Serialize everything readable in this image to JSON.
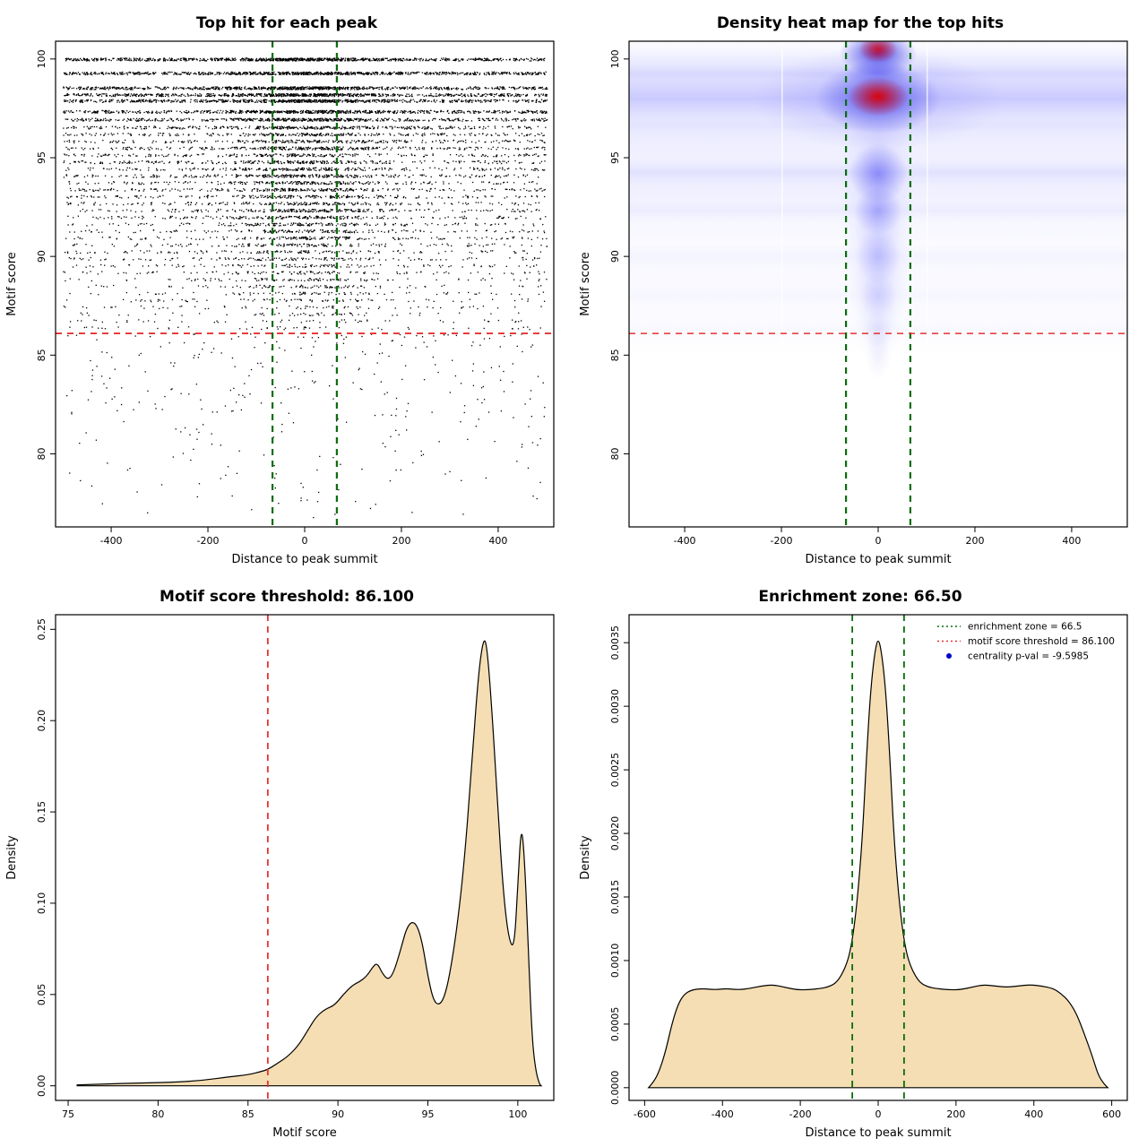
{
  "page": {
    "background": "#ffffff"
  },
  "colors": {
    "zone_green": "#0b6d0b",
    "threshold_red": "#e83030",
    "density_fill": "#f5deb3",
    "point_black": "#000000",
    "heat_blue": "#4040f0",
    "heat_red": "#e00000"
  },
  "chart_data": [
    {
      "id": "top-hits-scatter",
      "type": "scatter",
      "title": "Top hit for each peak",
      "xlabel": "Distance to peak summit",
      "ylabel": "Motif score",
      "xlim": [
        -515,
        515
      ],
      "ylim": [
        76.3,
        100.9
      ],
      "xticks": [
        {
          "v": -400,
          "l": "-400"
        },
        {
          "v": -200,
          "l": "-200"
        },
        {
          "v": 0,
          "l": "0"
        },
        {
          "v": 200,
          "l": "200"
        },
        {
          "v": 400,
          "l": "400"
        }
      ],
      "yticks": [
        {
          "v": 80,
          "l": "80"
        },
        {
          "v": 85,
          "l": "85"
        },
        {
          "v": 90,
          "l": "90"
        },
        {
          "v": 95,
          "l": "95"
        },
        {
          "v": 100,
          "l": "100"
        }
      ],
      "point_color": "#000000",
      "seed": 42,
      "bands": [
        [
          100.0,
          950,
          0.25
        ],
        [
          99.3,
          900,
          0.25
        ],
        [
          98.55,
          850,
          0.3
        ],
        [
          98.2,
          820,
          0.3
        ],
        [
          97.9,
          800,
          0.3
        ],
        [
          97.35,
          750,
          0.3
        ],
        [
          96.95,
          600,
          0.3
        ],
        [
          96.55,
          420,
          0.3
        ],
        [
          96.2,
          300,
          0.35
        ],
        [
          95.85,
          280,
          0.35
        ],
        [
          95.5,
          340,
          0.35
        ],
        [
          95.15,
          260,
          0.35
        ],
        [
          94.8,
          300,
          0.35
        ],
        [
          94.45,
          280,
          0.4
        ],
        [
          94.1,
          320,
          0.4
        ],
        [
          93.75,
          260,
          0.4
        ],
        [
          93.4,
          300,
          0.4
        ],
        [
          93.05,
          240,
          0.4
        ],
        [
          92.7,
          220,
          0.4
        ],
        [
          92.35,
          260,
          0.45
        ],
        [
          92.0,
          230,
          0.45
        ],
        [
          91.65,
          200,
          0.4
        ],
        [
          91.3,
          180,
          0.45
        ],
        [
          90.95,
          190,
          0.45
        ],
        [
          90.6,
          160,
          0.45
        ],
        [
          90.25,
          150,
          0.45
        ],
        [
          89.9,
          150,
          0.45
        ],
        [
          89.55,
          130,
          0.45
        ],
        [
          89.2,
          120,
          0.45
        ],
        [
          88.85,
          110,
          0.45
        ],
        [
          88.5,
          100,
          0.45
        ],
        [
          88.15,
          90,
          0.45
        ],
        [
          87.8,
          85,
          0.45
        ],
        [
          87.45,
          70,
          0.4
        ],
        [
          87.1,
          60,
          0.4
        ],
        [
          86.75,
          55,
          0.4
        ],
        [
          86.4,
          50,
          0.4
        ]
      ],
      "subthreshold": {
        "n": 330,
        "score_top": 86.1,
        "score_spread": 9.3
      },
      "vlines": [
        {
          "x": -66.5,
          "color": "#0b6d0b",
          "dash": [
            7,
            6
          ],
          "width": 2.2
        },
        {
          "x": 66.5,
          "color": "#0b6d0b",
          "dash": [
            7,
            6
          ],
          "width": 2.2
        }
      ],
      "hlines": [
        {
          "y": 86.1,
          "color": "#e83030",
          "dash": [
            7,
            6
          ],
          "width": 1.8
        }
      ]
    },
    {
      "id": "density-heatmap",
      "type": "heatmap",
      "title": "Density heat map for the top hits",
      "xlabel": "Distance to peak summit",
      "ylabel": "Motif score",
      "xlim": [
        -515,
        515
      ],
      "ylim": [
        76.3,
        100.9
      ],
      "xticks": [
        {
          "v": -400,
          "l": "-400"
        },
        {
          "v": -200,
          "l": "-200"
        },
        {
          "v": 0,
          "l": "0"
        },
        {
          "v": 200,
          "l": "200"
        },
        {
          "v": 400,
          "l": "400"
        }
      ],
      "yticks": [
        {
          "v": 80,
          "l": "80"
        },
        {
          "v": 85,
          "l": "85"
        },
        {
          "v": 90,
          "l": "90"
        },
        {
          "v": 95,
          "l": "95"
        },
        {
          "v": 100,
          "l": "100"
        }
      ],
      "hbands": [
        [
          98.0,
          1.5,
          0.3
        ],
        [
          99.25,
          0.55,
          0.12
        ],
        [
          96.6,
          0.5,
          0.05
        ],
        [
          94.25,
          0.95,
          0.17
        ],
        [
          92.3,
          0.8,
          0.1
        ],
        [
          90.0,
          0.9,
          0.065
        ],
        [
          88.0,
          0.85,
          0.05
        ],
        [
          86.3,
          0.6,
          0.035
        ]
      ],
      "blobs": [
        [
          0,
          93.5,
          75,
          9.5,
          "#5050ff",
          0.14
        ],
        [
          0,
          90.5,
          50,
          6,
          "#5050ff",
          0.1
        ],
        [
          0,
          98,
          260,
          2.6,
          "#4040f0",
          0.2
        ],
        [
          0,
          98,
          130,
          1.8,
          "#3030e8",
          0.65
        ],
        [
          0,
          98.1,
          62,
          1.0,
          "#e00000",
          0.95
        ],
        [
          0,
          100.3,
          80,
          1.2,
          "#3030e8",
          0.85
        ],
        [
          0,
          100.5,
          40,
          0.7,
          "#e00000",
          0.8
        ],
        [
          0,
          99.3,
          70,
          0.7,
          "#4040f0",
          0.35
        ],
        [
          0,
          94.2,
          60,
          1.5,
          "#4040f0",
          0.45
        ],
        [
          0,
          92.3,
          50,
          1.2,
          "#4040f0",
          0.3
        ],
        [
          0,
          90,
          45,
          1.4,
          "#4040f0",
          0.18
        ],
        [
          0,
          88,
          38,
          1.2,
          "#4040f0",
          0.13
        ],
        [
          0,
          86.3,
          30,
          1.0,
          "#4040f0",
          0.09
        ],
        [
          0,
          85,
          26,
          1.3,
          "#4040f0",
          0.06
        ]
      ],
      "white_lines": [
        -200,
        100
      ],
      "vlines": [
        {
          "x": -66.5,
          "color": "#0b6d0b",
          "dash": [
            7,
            6
          ],
          "width": 2.2
        },
        {
          "x": 66.5,
          "color": "#0b6d0b",
          "dash": [
            7,
            6
          ],
          "width": 2.2
        }
      ],
      "hlines": [
        {
          "y": 86.1,
          "color": "#e83030",
          "dash": [
            7,
            6
          ],
          "width": 1.5
        }
      ]
    },
    {
      "id": "motif-score-density",
      "type": "density",
      "title": "Motif score threshold: 86.100",
      "xlabel": "Motif score",
      "ylabel": "Density",
      "xlim": [
        74.3,
        102
      ],
      "ylim": [
        -0.008,
        0.258
      ],
      "xticks": [
        {
          "v": 75,
          "l": "75"
        },
        {
          "v": 80,
          "l": "80"
        },
        {
          "v": 85,
          "l": "85"
        },
        {
          "v": 90,
          "l": "90"
        },
        {
          "v": 95,
          "l": "95"
        },
        {
          "v": 100,
          "l": "100"
        }
      ],
      "yticks": [
        {
          "v": 0,
          "l": "0.00"
        },
        {
          "v": 0.05,
          "l": "0.05"
        },
        {
          "v": 0.1,
          "l": "0.10"
        },
        {
          "v": 0.15,
          "l": "0.15"
        },
        {
          "v": 0.2,
          "l": "0.20"
        },
        {
          "v": 0.25,
          "l": "0.25"
        }
      ],
      "fill": "#f5deb3",
      "stroke": "#000000",
      "points": [
        [
          75.5,
          0.0005
        ],
        [
          77,
          0.001
        ],
        [
          79,
          0.0015
        ],
        [
          81,
          0.002
        ],
        [
          82.5,
          0.003
        ],
        [
          84,
          0.005
        ],
        [
          85,
          0.006
        ],
        [
          85.8,
          0.008
        ],
        [
          86.1,
          0.009
        ],
        [
          86.6,
          0.012
        ],
        [
          87.2,
          0.016
        ],
        [
          87.8,
          0.022
        ],
        [
          88.3,
          0.03
        ],
        [
          88.8,
          0.038
        ],
        [
          89.3,
          0.042
        ],
        [
          89.8,
          0.044
        ],
        [
          90.3,
          0.05
        ],
        [
          90.8,
          0.055
        ],
        [
          91.2,
          0.057
        ],
        [
          91.6,
          0.06
        ],
        [
          92.0,
          0.066
        ],
        [
          92.2,
          0.067
        ],
        [
          92.5,
          0.061
        ],
        [
          92.8,
          0.058
        ],
        [
          93.1,
          0.062
        ],
        [
          93.5,
          0.075
        ],
        [
          93.8,
          0.086
        ],
        [
          94.1,
          0.09
        ],
        [
          94.4,
          0.088
        ],
        [
          94.7,
          0.078
        ],
        [
          95.0,
          0.06
        ],
        [
          95.3,
          0.047
        ],
        [
          95.6,
          0.044
        ],
        [
          95.9,
          0.048
        ],
        [
          96.2,
          0.06
        ],
        [
          96.6,
          0.085
        ],
        [
          97.0,
          0.12
        ],
        [
          97.4,
          0.17
        ],
        [
          97.8,
          0.225
        ],
        [
          98.1,
          0.246
        ],
        [
          98.3,
          0.24
        ],
        [
          98.6,
          0.2
        ],
        [
          98.9,
          0.15
        ],
        [
          99.2,
          0.105
        ],
        [
          99.5,
          0.08
        ],
        [
          99.8,
          0.075
        ],
        [
          100.0,
          0.11
        ],
        [
          100.2,
          0.145
        ],
        [
          100.4,
          0.12
        ],
        [
          100.6,
          0.07
        ],
        [
          100.8,
          0.025
        ],
        [
          101.0,
          0.008
        ],
        [
          101.2,
          0.001
        ],
        [
          101.3,
          0
        ]
      ],
      "vlines": [
        {
          "x": 86.1,
          "color": "#e83030",
          "dash": [
            7,
            6
          ],
          "width": 1.8
        }
      ],
      "hlines": []
    },
    {
      "id": "summit-distance-density",
      "type": "density",
      "title": "Enrichment zone: 66.50",
      "xlabel": "Distance to peak summit",
      "ylabel": "Density",
      "xlim": [
        -640,
        640
      ],
      "ylim": [
        -0.0001,
        0.00372
      ],
      "xticks": [
        {
          "v": -600,
          "l": "-600"
        },
        {
          "v": -400,
          "l": "-400"
        },
        {
          "v": -200,
          "l": "-200"
        },
        {
          "v": 0,
          "l": "0"
        },
        {
          "v": 200,
          "l": "200"
        },
        {
          "v": 400,
          "l": "400"
        },
        {
          "v": 600,
          "l": "600"
        }
      ],
      "yticks": [
        {
          "v": 0,
          "l": "0.0000"
        },
        {
          "v": 0.0005,
          "l": "0.0005"
        },
        {
          "v": 0.001,
          "l": "0.0010"
        },
        {
          "v": 0.0015,
          "l": "0.0015"
        },
        {
          "v": 0.002,
          "l": "0.0020"
        },
        {
          "v": 0.0025,
          "l": "0.0025"
        },
        {
          "v": 0.003,
          "l": "0.0030"
        },
        {
          "v": 0.0035,
          "l": "0.0035"
        }
      ],
      "fill": "#f5deb3",
      "stroke": "#000000",
      "points": [
        [
          -590,
          0
        ],
        [
          -575,
          5e-05
        ],
        [
          -560,
          0.00015
        ],
        [
          -545,
          0.0003
        ],
        [
          -530,
          0.0005
        ],
        [
          -515,
          0.00065
        ],
        [
          -500,
          0.00073
        ],
        [
          -480,
          0.00077
        ],
        [
          -450,
          0.00078
        ],
        [
          -420,
          0.00077
        ],
        [
          -390,
          0.00078
        ],
        [
          -360,
          0.00077
        ],
        [
          -330,
          0.00078
        ],
        [
          -300,
          0.0008
        ],
        [
          -270,
          0.00081
        ],
        [
          -240,
          0.00079
        ],
        [
          -210,
          0.00077
        ],
        [
          -180,
          0.00077
        ],
        [
          -150,
          0.00078
        ],
        [
          -130,
          0.00079
        ],
        [
          -110,
          0.00082
        ],
        [
          -95,
          0.00088
        ],
        [
          -80,
          0.00098
        ],
        [
          -70,
          0.0011
        ],
        [
          -60,
          0.0013
        ],
        [
          -50,
          0.0016
        ],
        [
          -40,
          0.002
        ],
        [
          -30,
          0.0026
        ],
        [
          -20,
          0.0031
        ],
        [
          -10,
          0.0034
        ],
        [
          0,
          0.00355
        ],
        [
          10,
          0.0034
        ],
        [
          20,
          0.0031
        ],
        [
          30,
          0.0026
        ],
        [
          40,
          0.002
        ],
        [
          50,
          0.0016
        ],
        [
          60,
          0.0013
        ],
        [
          70,
          0.0011
        ],
        [
          80,
          0.00098
        ],
        [
          95,
          0.00088
        ],
        [
          110,
          0.00082
        ],
        [
          130,
          0.00079
        ],
        [
          150,
          0.00078
        ],
        [
          180,
          0.00077
        ],
        [
          210,
          0.00077
        ],
        [
          240,
          0.00079
        ],
        [
          270,
          0.00081
        ],
        [
          300,
          0.0008
        ],
        [
          330,
          0.00079
        ],
        [
          360,
          0.0008
        ],
        [
          390,
          0.00081
        ],
        [
          420,
          0.0008
        ],
        [
          450,
          0.00078
        ],
        [
          470,
          0.00074
        ],
        [
          490,
          0.00068
        ],
        [
          510,
          0.00058
        ],
        [
          530,
          0.00042
        ],
        [
          550,
          0.00025
        ],
        [
          565,
          0.0001
        ],
        [
          580,
          3e-05
        ],
        [
          590,
          0
        ]
      ],
      "vlines": [
        {
          "x": -66.5,
          "color": "#0b6d0b",
          "dash": [
            7,
            6
          ],
          "width": 1.8
        },
        {
          "x": 66.5,
          "color": "#0b6d0b",
          "dash": [
            7,
            6
          ],
          "width": 1.8
        }
      ],
      "hlines": [],
      "legend": [
        {
          "type": "line",
          "color": "#0b6d0b",
          "dash": [
            2,
            3
          ],
          "label": "enrichment zone = 66.5"
        },
        {
          "type": "line",
          "color": "#e83030",
          "dash": [
            2,
            3
          ],
          "label": "motif score threshold = 86.100"
        },
        {
          "type": "point",
          "color": "#0000cc",
          "label": "centrality p-val = -9.5985"
        }
      ]
    }
  ]
}
